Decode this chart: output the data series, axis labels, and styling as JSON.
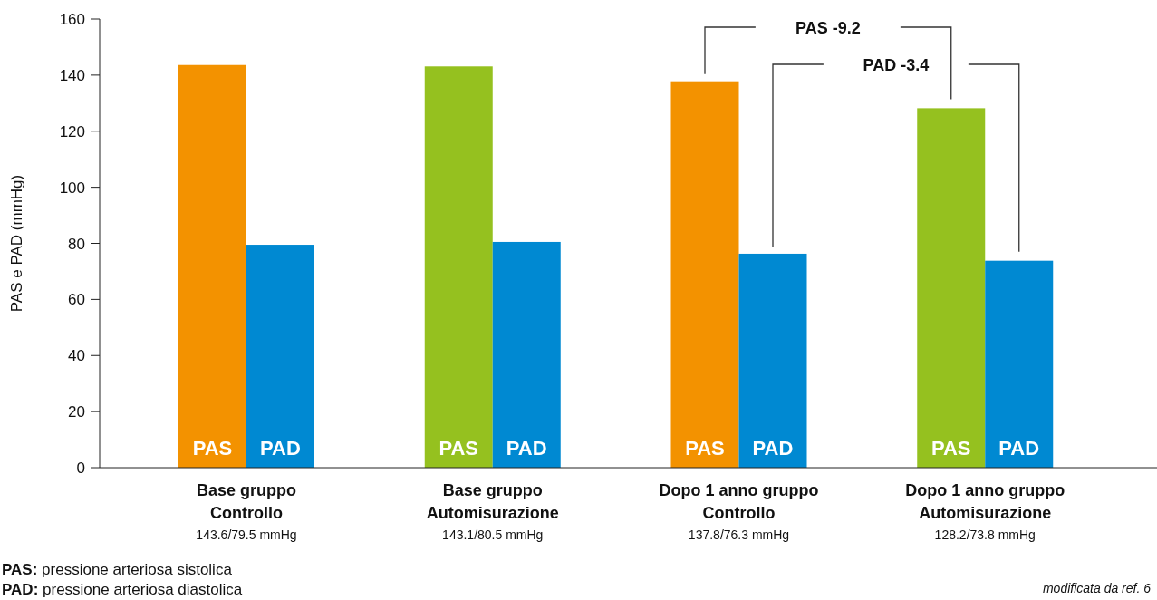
{
  "chart_data": {
    "type": "bar",
    "ylabel": "PAS e PAD (mmHg)",
    "categories": [
      "Base gruppo\nControllo\n143.6/79.5 mmHg",
      "Base gruppo\nAutomisurazione\n143.1/80.5 mmHg",
      "Dopo 1 anno gruppo\nControllo\n137.8/76.3 mmHg",
      "Dopo 1 anno gruppo\nAutomisurazione\n128.2/73.8 mmHg"
    ],
    "series": [
      {
        "name": "PAS",
        "colors": [
          "#f39200",
          "#95c11f",
          "#f39200",
          "#95c11f"
        ],
        "values": [
          143.6,
          143.1,
          137.8,
          128.2
        ]
      },
      {
        "name": "PAD",
        "color": "#0089d2",
        "values": [
          79.5,
          80.5,
          76.3,
          73.8
        ]
      }
    ],
    "ylim": [
      0,
      160
    ],
    "yticks": [
      0,
      20,
      40,
      60,
      80,
      100,
      120,
      140,
      160
    ],
    "grid": false,
    "legend": false,
    "annotations": [
      "PAS -9.2",
      "PAD -3.4",
      "PAS: pressione arteriosa sistolica",
      "PAD: pressione arteriosa diastolica",
      "modificata da ref. 6"
    ]
  }
}
